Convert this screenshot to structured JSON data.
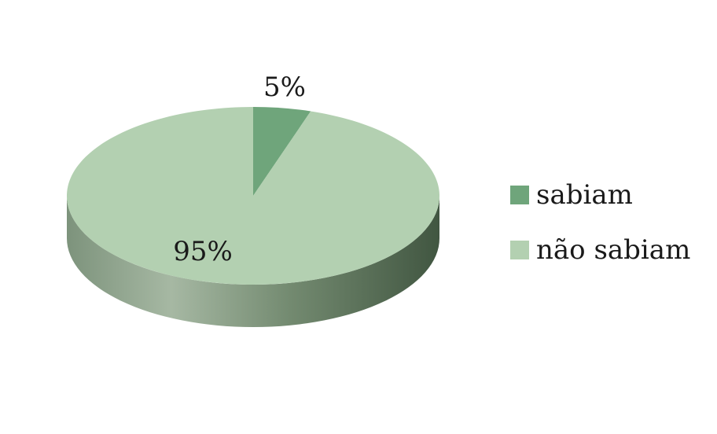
{
  "chart_data": {
    "type": "pie",
    "style": "3d",
    "title": "",
    "categories": [
      "sabiam",
      "não sabiam"
    ],
    "values": [
      5,
      95
    ],
    "data_labels": [
      "5%",
      "95%"
    ],
    "colors": [
      "#6fa57b",
      "#b3d0b1"
    ],
    "legend": {
      "placement": "right",
      "entries": [
        "sabiam",
        "não sabiam"
      ]
    }
  }
}
